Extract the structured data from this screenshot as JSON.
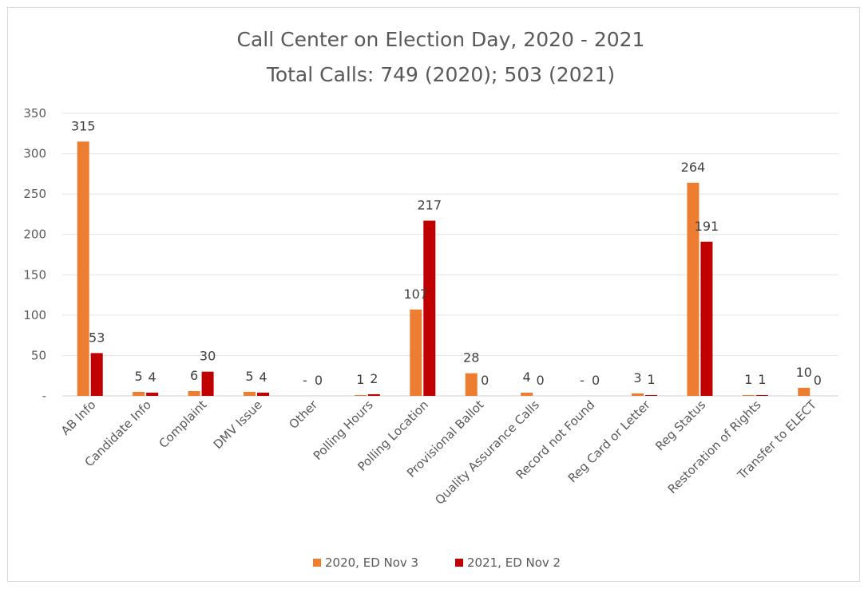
{
  "chart_data": {
    "type": "bar",
    "title": "Call Center on Election Day, 2020 - 2021",
    "subtitle": "Total Calls: 749 (2020); 503 (2021)",
    "xlabel": "",
    "ylabel": "",
    "ylim": [
      0,
      350
    ],
    "yticks": [
      "-",
      "50",
      "100",
      "150",
      "200",
      "250",
      "300",
      "350"
    ],
    "grid": true,
    "legend_position": "bottom",
    "categories": [
      "AB Info",
      "Candidate Info",
      "Complaint",
      "DMV Issue",
      "Other",
      "Polling Hours",
      "Polling Location",
      "Provisional Ballot",
      "Quality Assurance Calls",
      "Record not Found",
      "Reg Card or Letter",
      "Reg Status",
      "Restoration of Rights",
      "Transfer to ELECT"
    ],
    "series": [
      {
        "name": "2020, ED Nov 3",
        "color": "#ED7D31",
        "values": [
          315,
          5,
          6,
          5,
          0,
          1,
          107,
          28,
          4,
          0,
          3,
          264,
          1,
          10
        ],
        "labels": [
          "315",
          "5",
          "6",
          "5",
          "-",
          "1",
          "107",
          "28",
          "4",
          "-",
          "3",
          "264",
          "1",
          "10"
        ]
      },
      {
        "name": "2021, ED Nov 2",
        "color": "#C00000",
        "values": [
          53,
          4,
          30,
          4,
          0,
          2,
          217,
          0,
          0,
          0,
          1,
          191,
          1,
          0
        ],
        "labels": [
          "53",
          "4",
          "30",
          "4",
          "0",
          "2",
          "217",
          "0",
          "0",
          "0",
          "1",
          "191",
          "1",
          "0"
        ]
      }
    ]
  }
}
